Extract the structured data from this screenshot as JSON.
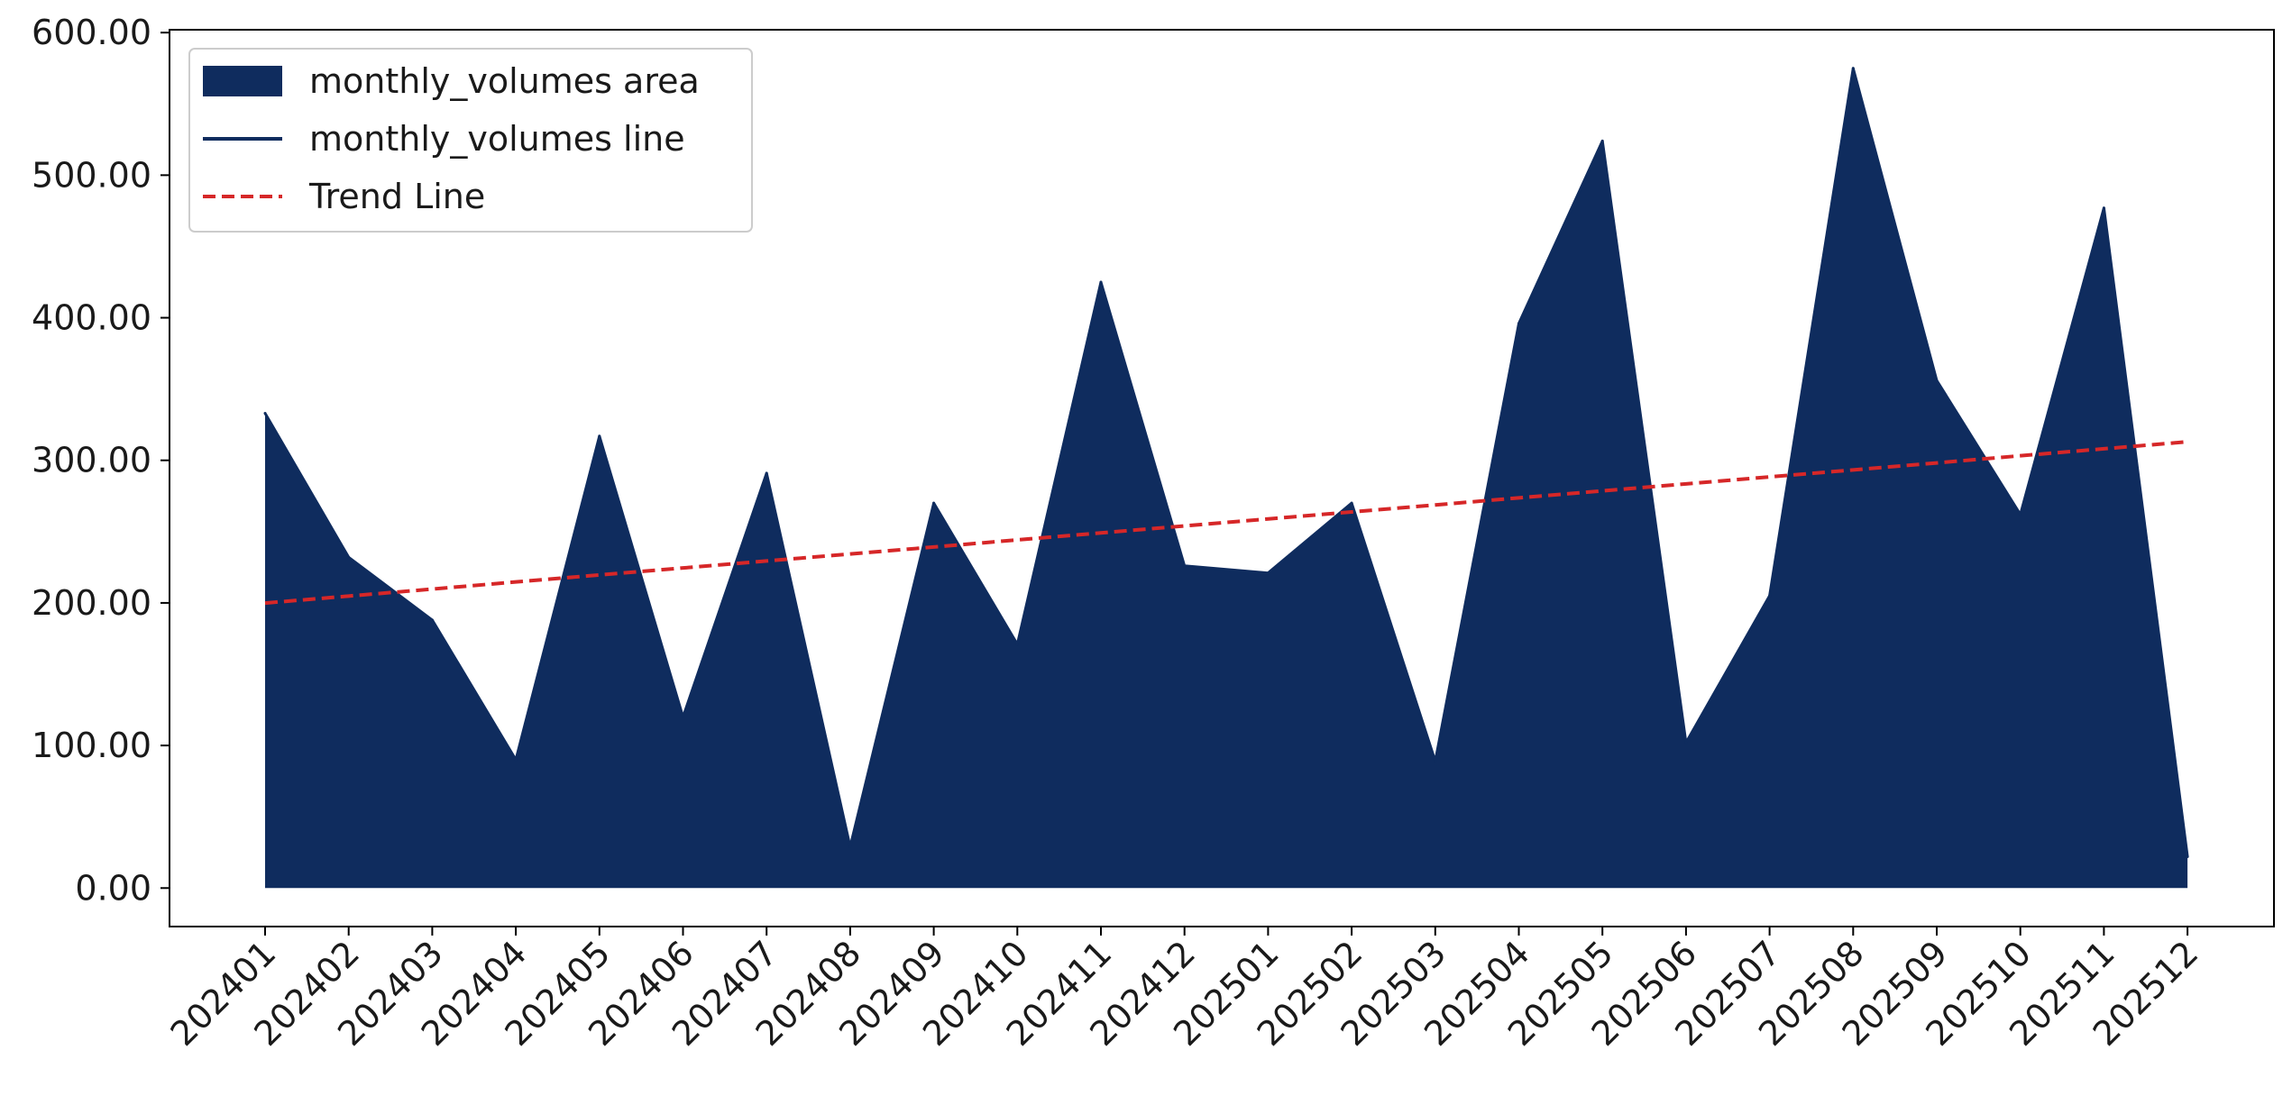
{
  "chart_data": {
    "type": "area",
    "categories": [
      "202401",
      "202402",
      "202403",
      "202404",
      "202405",
      "202406",
      "202407",
      "202408",
      "202409",
      "202410",
      "202411",
      "202412",
      "202501",
      "202502",
      "202503",
      "202504",
      "202505",
      "202506",
      "202507",
      "202508",
      "202509",
      "202510",
      "202511",
      "202512"
    ],
    "series": [
      {
        "name": "monthly_volumes area",
        "style": "area",
        "color": "#0f2c5e",
        "values": [
          333,
          232,
          188,
          90,
          317,
          120,
          291,
          29,
          270,
          171,
          425,
          226,
          221,
          270,
          89,
          396,
          524,
          102,
          205,
          575,
          356,
          262,
          477,
          22
        ]
      },
      {
        "name": "monthly_volumes line",
        "style": "line",
        "color": "#0f2c5e",
        "values": [
          333,
          232,
          188,
          90,
          317,
          120,
          291,
          29,
          270,
          171,
          425,
          226,
          221,
          270,
          89,
          396,
          524,
          102,
          205,
          575,
          356,
          262,
          477,
          22
        ]
      },
      {
        "name": "Trend Line",
        "style": "dashed-line",
        "color": "#d62728",
        "values": [
          199.9,
          204.8,
          209.7,
          214.7,
          219.6,
          224.5,
          229.4,
          234.3,
          239.2,
          244.2,
          249.1,
          254.0,
          258.9,
          263.8,
          268.7,
          273.7,
          278.6,
          283.5,
          288.4,
          293.3,
          298.2,
          303.2,
          308.1,
          313.0
        ]
      }
    ],
    "yticks": [
      "0.00",
      "100.00",
      "200.00",
      "300.00",
      "400.00",
      "500.00",
      "600.00"
    ],
    "ylim": [
      -27,
      602
    ],
    "grid": false,
    "legend_position": "upper-left",
    "title": "",
    "xlabel": "",
    "ylabel": ""
  }
}
